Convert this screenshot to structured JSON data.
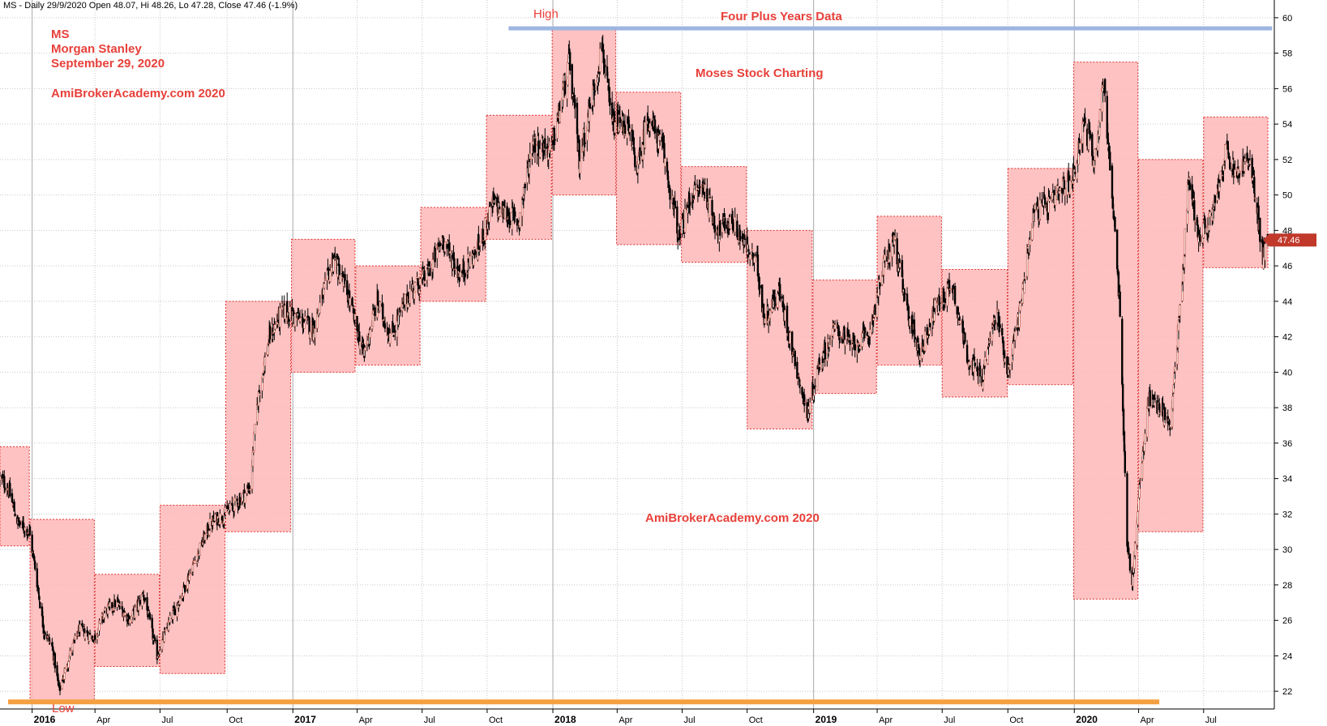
{
  "header": "MS - Daily 29/9/2020 Open 48.07, Hi 48.26, Lo 47.28, Close 47.46 (-1.9%)",
  "annotations": {
    "symbol": "MS",
    "company": "Morgan Stanley",
    "date": "September 29, 2020",
    "site_top": "AmiBrokerAcademy.com 2020",
    "high": "High",
    "four_plus": "Four Plus Years Data",
    "moses": "Moses Stock Charting",
    "site_mid": "AmiBrokerAcademy.com  2020",
    "low": "Low"
  },
  "colors": {
    "box_fill": "#ffb7b7",
    "box_stroke": "#e03030",
    "high_line": "#9db6e0",
    "low_line": "#f5a040",
    "grid": "#c8c8c8",
    "price_label_bg": "#c0392b",
    "candle_up": "#ffffff",
    "candle_down": "#000000",
    "candle_edge": "#b84a3a"
  },
  "chart_data": {
    "type": "candlestick",
    "title": "",
    "ylim": [
      21,
      61
    ],
    "y_ticks": [
      22,
      24,
      26,
      28,
      30,
      32,
      34,
      36,
      38,
      40,
      42,
      44,
      46,
      48,
      50,
      52,
      54,
      56,
      58,
      60
    ],
    "x_range": [
      "2015-11-20",
      "2020-10-08"
    ],
    "x_ticks": [
      {
        "label": "2016",
        "date": "2016-01-04",
        "major": true
      },
      {
        "label": "Apr",
        "date": "2016-04-01",
        "major": false
      },
      {
        "label": "Jul",
        "date": "2016-07-01",
        "major": false
      },
      {
        "label": "Oct",
        "date": "2016-10-03",
        "major": false
      },
      {
        "label": "2017",
        "date": "2017-01-03",
        "major": true
      },
      {
        "label": "Apr",
        "date": "2017-04-03",
        "major": false
      },
      {
        "label": "Jul",
        "date": "2017-07-03",
        "major": false
      },
      {
        "label": "Oct",
        "date": "2017-10-02",
        "major": false
      },
      {
        "label": "2018",
        "date": "2018-01-02",
        "major": true
      },
      {
        "label": "Apr",
        "date": "2018-04-02",
        "major": false
      },
      {
        "label": "Jul",
        "date": "2018-07-02",
        "major": false
      },
      {
        "label": "Oct",
        "date": "2018-10-01",
        "major": false
      },
      {
        "label": "2019",
        "date": "2019-01-02",
        "major": true
      },
      {
        "label": "Apr",
        "date": "2019-04-01",
        "major": false
      },
      {
        "label": "Jul",
        "date": "2019-07-01",
        "major": false
      },
      {
        "label": "Oct",
        "date": "2019-10-01",
        "major": false
      },
      {
        "label": "2020",
        "date": "2020-01-02",
        "major": true
      },
      {
        "label": "Apr",
        "date": "2020-04-01",
        "major": false
      },
      {
        "label": "Jul",
        "date": "2020-07-01",
        "major": false
      }
    ],
    "last_price": "47.46",
    "high_line": {
      "value": 59.4,
      "start": "2017-11-01",
      "end": "2020-10-05"
    },
    "low_line": {
      "value": 21.4,
      "start": "2015-11-20",
      "end": "2020-04-30"
    },
    "quarter_boxes": [
      {
        "start": "2015-10-01",
        "end": "2015-12-31",
        "low": 30.2,
        "high": 35.8
      },
      {
        "start": "2016-01-01",
        "end": "2016-03-31",
        "low": 21.4,
        "high": 31.7
      },
      {
        "start": "2016-04-01",
        "end": "2016-06-30",
        "low": 23.4,
        "high": 28.6
      },
      {
        "start": "2016-07-01",
        "end": "2016-09-30",
        "low": 23.0,
        "high": 32.5
      },
      {
        "start": "2016-10-01",
        "end": "2016-12-31",
        "low": 31.0,
        "high": 44.0
      },
      {
        "start": "2017-01-01",
        "end": "2017-03-31",
        "low": 40.0,
        "high": 47.5
      },
      {
        "start": "2017-04-01",
        "end": "2017-06-30",
        "low": 40.4,
        "high": 46.0
      },
      {
        "start": "2017-07-01",
        "end": "2017-09-30",
        "low": 44.0,
        "high": 49.3
      },
      {
        "start": "2017-10-01",
        "end": "2017-12-31",
        "low": 47.5,
        "high": 54.5
      },
      {
        "start": "2018-01-01",
        "end": "2018-03-31",
        "low": 50.0,
        "high": 59.4
      },
      {
        "start": "2018-04-01",
        "end": "2018-06-30",
        "low": 47.2,
        "high": 55.8
      },
      {
        "start": "2018-07-01",
        "end": "2018-09-30",
        "low": 46.2,
        "high": 51.6
      },
      {
        "start": "2018-10-01",
        "end": "2018-12-31",
        "low": 36.8,
        "high": 48.0
      },
      {
        "start": "2019-01-01",
        "end": "2019-03-31",
        "low": 38.8,
        "high": 45.2
      },
      {
        "start": "2019-04-01",
        "end": "2019-06-30",
        "low": 40.4,
        "high": 48.8
      },
      {
        "start": "2019-07-01",
        "end": "2019-09-30",
        "low": 38.6,
        "high": 45.8
      },
      {
        "start": "2019-10-01",
        "end": "2019-12-31",
        "low": 39.3,
        "high": 51.5
      },
      {
        "start": "2020-01-01",
        "end": "2020-03-31",
        "low": 27.2,
        "high": 57.5
      },
      {
        "start": "2020-04-01",
        "end": "2020-06-30",
        "low": 31.0,
        "high": 52.0
      },
      {
        "start": "2020-07-01",
        "end": "2020-09-29",
        "low": 45.9,
        "high": 54.4
      }
    ],
    "price_path": [
      [
        "2015-11-20",
        34.0
      ],
      [
        "2015-12-01",
        33.5
      ],
      [
        "2015-12-15",
        31.5
      ],
      [
        "2015-12-31",
        31.0
      ],
      [
        "2016-01-08",
        29.0
      ],
      [
        "2016-01-20",
        25.5
      ],
      [
        "2016-02-01",
        24.5
      ],
      [
        "2016-02-11",
        22.0
      ],
      [
        "2016-02-25",
        24.0
      ],
      [
        "2016-03-10",
        25.5
      ],
      [
        "2016-03-31",
        25.0
      ],
      [
        "2016-04-15",
        26.5
      ],
      [
        "2016-05-01",
        27.0
      ],
      [
        "2016-05-20",
        26.0
      ],
      [
        "2016-06-08",
        27.5
      ],
      [
        "2016-06-27",
        24.0
      ],
      [
        "2016-07-15",
        26.0
      ],
      [
        "2016-08-01",
        27.5
      ],
      [
        "2016-08-20",
        29.5
      ],
      [
        "2016-09-10",
        31.5
      ],
      [
        "2016-09-30",
        32.0
      ],
      [
        "2016-10-20",
        32.8
      ],
      [
        "2016-11-04",
        33.5
      ],
      [
        "2016-11-15",
        38.5
      ],
      [
        "2016-12-01",
        42.0
      ],
      [
        "2016-12-20",
        43.5
      ],
      [
        "2017-01-10",
        43.0
      ],
      [
        "2017-02-01",
        42.5
      ],
      [
        "2017-03-01",
        46.5
      ],
      [
        "2017-03-20",
        44.5
      ],
      [
        "2017-04-12",
        41.0
      ],
      [
        "2017-05-01",
        44.0
      ],
      [
        "2017-05-20",
        42.0
      ],
      [
        "2017-06-15",
        44.5
      ],
      [
        "2017-07-10",
        45.5
      ],
      [
        "2017-08-01",
        47.5
      ],
      [
        "2017-08-25",
        45.5
      ],
      [
        "2017-09-20",
        47.0
      ],
      [
        "2017-10-10",
        49.5
      ],
      [
        "2017-10-25",
        49.0
      ],
      [
        "2017-11-15",
        48.5
      ],
      [
        "2017-12-05",
        53.0
      ],
      [
        "2017-12-31",
        52.5
      ],
      [
        "2018-01-25",
        57.5
      ],
      [
        "2018-02-08",
        52.0
      ],
      [
        "2018-03-01",
        56.0
      ],
      [
        "2018-03-12",
        58.5
      ],
      [
        "2018-03-25",
        54.0
      ],
      [
        "2018-04-15",
        54.0
      ],
      [
        "2018-05-01",
        51.5
      ],
      [
        "2018-05-15",
        54.5
      ],
      [
        "2018-06-05",
        52.5
      ],
      [
        "2018-06-28",
        47.5
      ],
      [
        "2018-07-15",
        50.0
      ],
      [
        "2018-08-01",
        50.5
      ],
      [
        "2018-08-20",
        48.0
      ],
      [
        "2018-09-10",
        48.5
      ],
      [
        "2018-09-30",
        47.0
      ],
      [
        "2018-10-15",
        46.0
      ],
      [
        "2018-10-25",
        43.0
      ],
      [
        "2018-11-15",
        44.5
      ],
      [
        "2018-12-05",
        41.0
      ],
      [
        "2018-12-24",
        37.5
      ],
      [
        "2019-01-10",
        40.5
      ],
      [
        "2019-02-01",
        42.5
      ],
      [
        "2019-02-25",
        41.5
      ],
      [
        "2019-03-20",
        42.0
      ],
      [
        "2019-04-10",
        46.0
      ],
      [
        "2019-04-25",
        47.5
      ],
      [
        "2019-05-10",
        44.0
      ],
      [
        "2019-05-31",
        41.0
      ],
      [
        "2019-06-20",
        43.5
      ],
      [
        "2019-07-15",
        45.0
      ],
      [
        "2019-08-05",
        41.0
      ],
      [
        "2019-08-25",
        39.5
      ],
      [
        "2019-09-15",
        43.5
      ],
      [
        "2019-10-01",
        40.0
      ],
      [
        "2019-10-20",
        44.0
      ],
      [
        "2019-11-05",
        49.0
      ],
      [
        "2019-12-01",
        49.5
      ],
      [
        "2019-12-31",
        51.0
      ],
      [
        "2020-01-15",
        54.0
      ],
      [
        "2020-01-31",
        52.0
      ],
      [
        "2020-02-12",
        56.5
      ],
      [
        "2020-02-24",
        50.0
      ],
      [
        "2020-03-05",
        44.0
      ],
      [
        "2020-03-16",
        30.5
      ],
      [
        "2020-03-23",
        28.0
      ],
      [
        "2020-04-01",
        33.0
      ],
      [
        "2020-04-15",
        38.5
      ],
      [
        "2020-05-01",
        38.0
      ],
      [
        "2020-05-15",
        37.0
      ],
      [
        "2020-06-01",
        45.0
      ],
      [
        "2020-06-10",
        51.0
      ],
      [
        "2020-06-25",
        47.5
      ],
      [
        "2020-07-15",
        49.0
      ],
      [
        "2020-08-01",
        52.5
      ],
      [
        "2020-08-15",
        51.0
      ],
      [
        "2020-08-31",
        52.0
      ],
      [
        "2020-09-10",
        50.5
      ],
      [
        "2020-09-22",
        46.5
      ],
      [
        "2020-09-29",
        47.46
      ]
    ]
  }
}
